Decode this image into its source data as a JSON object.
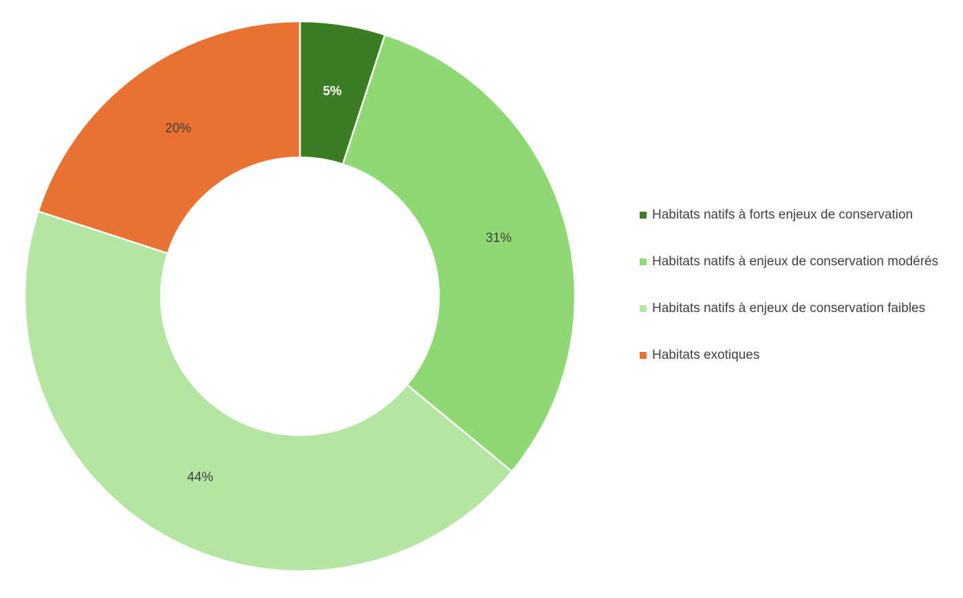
{
  "chart_data": {
    "type": "donut",
    "categories": [
      "Habitats natifs à forts enjeux de conservation",
      "Habitats natifs à enjeux de conservation modérés",
      "Habitats natifs à enjeux de conservation faibles",
      "Habitats exotiques"
    ],
    "values": [
      5,
      31,
      44,
      20
    ],
    "value_labels": [
      "5%",
      "31%",
      "44%",
      "20%"
    ],
    "colors": [
      "#3a7d22",
      "#8fd974",
      "#b4e5a2",
      "#e97132"
    ],
    "legend": "right"
  }
}
